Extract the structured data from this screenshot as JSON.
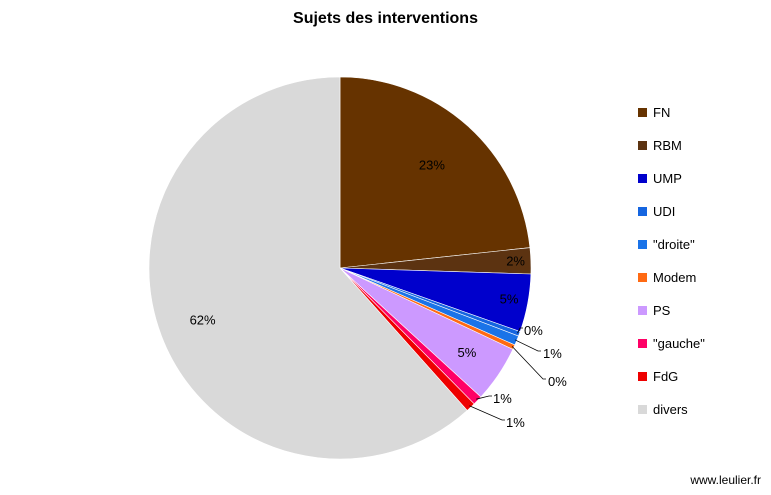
{
  "chart_data": {
    "type": "pie",
    "title": "Sujets des interventions",
    "categories": [
      "FN",
      "RBM",
      "UMP",
      "UDI",
      "\"droite\"",
      "Modem",
      "PS",
      "\"gauche\"",
      "FdG",
      "divers"
    ],
    "values": [
      23.3,
      2.2,
      4.9,
      0.4,
      0.8,
      0.4,
      4.8,
      0.8,
      0.8,
      61.6
    ],
    "labels": [
      "23%",
      "2%",
      "5%",
      "0%",
      "1%",
      "0%",
      "5%",
      "1%",
      "1%",
      "62%"
    ],
    "colors": [
      "#663300",
      "#5c3311",
      "#0000cc",
      "#1565e0",
      "#1a73e8",
      "#ff6a13",
      "#cc99ff",
      "#ff0066",
      "#ee0000",
      "#d9d9d9"
    ],
    "legend_position": "right"
  },
  "footer": {
    "credit": "www.leulier.fr"
  }
}
